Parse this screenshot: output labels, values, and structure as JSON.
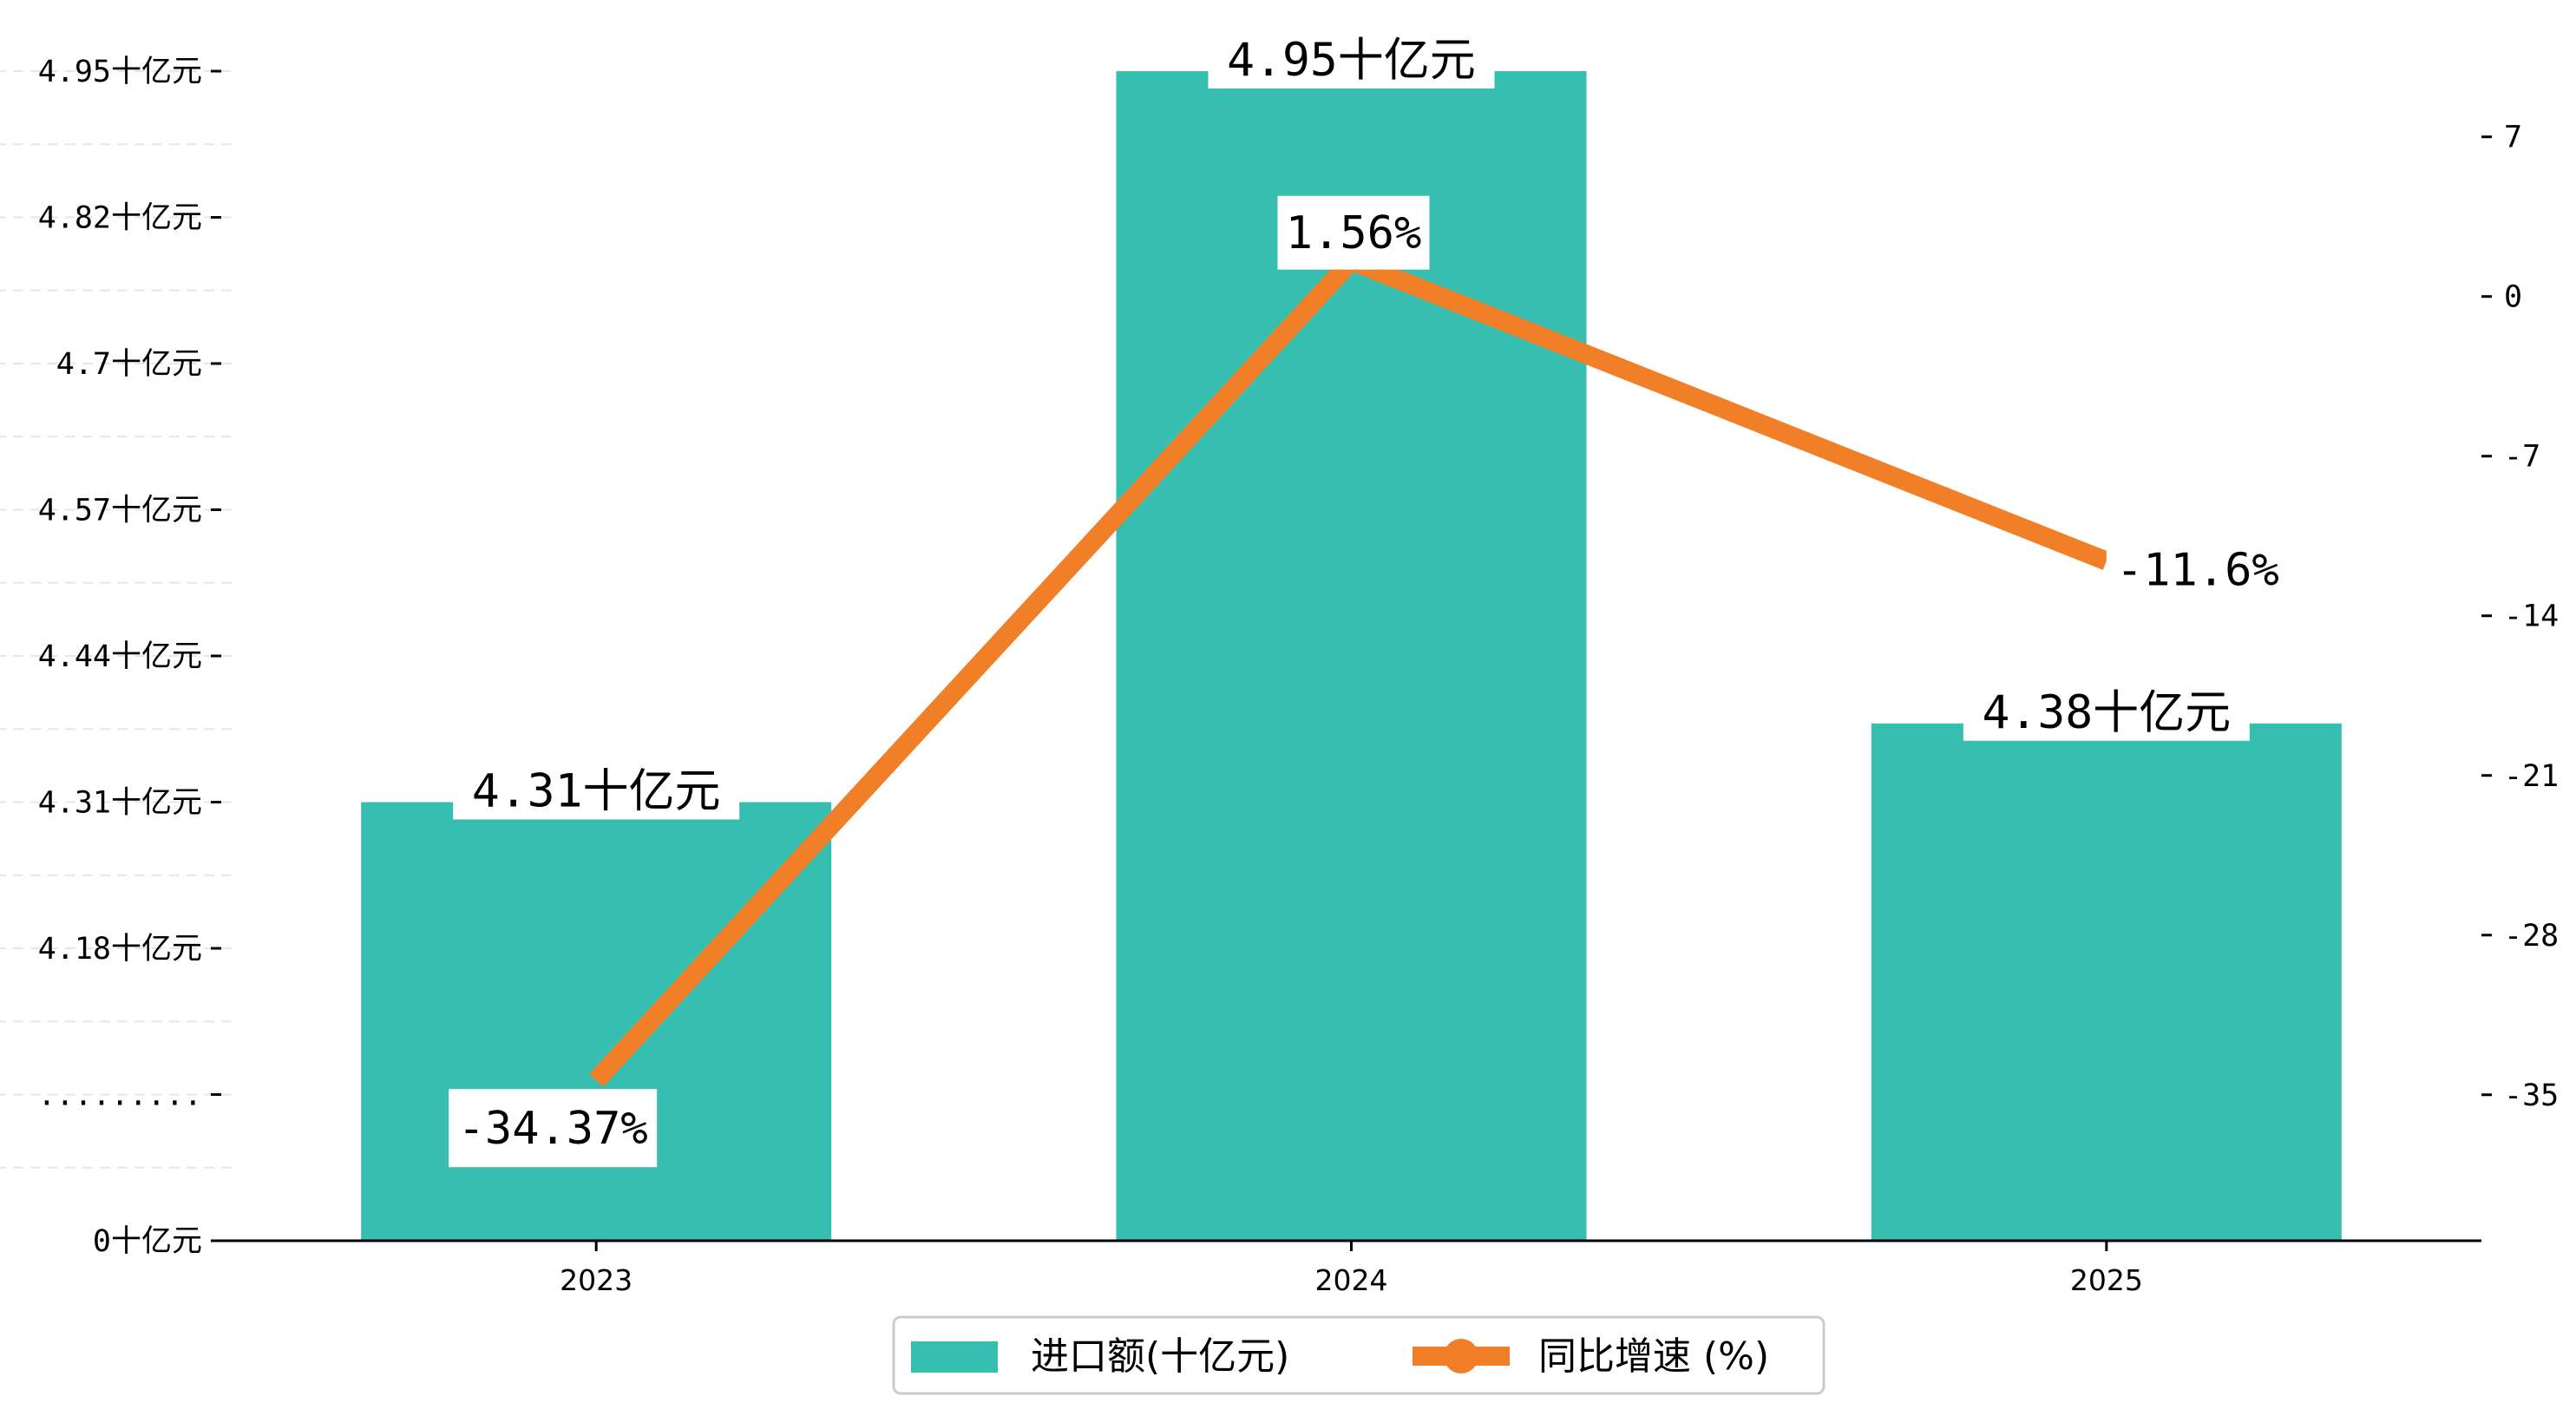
{
  "chart_data": {
    "type": "bar",
    "categories": [
      "2023",
      "2024",
      "2025"
    ],
    "series": [
      {
        "name": "进口额(十亿元)",
        "type": "bar",
        "axis": "left",
        "values": [
          4.31,
          4.95,
          4.38
        ],
        "labels": [
          "4.31十亿元",
          "4.95十亿元",
          "4.38十亿元"
        ],
        "color": "#1ab5a5"
      },
      {
        "name": "同比增速 (%)",
        "type": "line",
        "axis": "right",
        "values": [
          -34.37,
          1.56,
          -11.6
        ],
        "labels": [
          "-34.37%",
          "1.56%",
          "-11.6%"
        ],
        "color": "#f07f28"
      }
    ],
    "left_axis": {
      "ticks": [
        {
          "value": 0,
          "label": "0十亿元"
        },
        {
          "value": 4.05,
          "label": "........."
        },
        {
          "value": 4.18,
          "label": "4.18十亿元"
        },
        {
          "value": 4.31,
          "label": "4.31十亿元"
        },
        {
          "value": 4.44,
          "label": "4.44十亿元"
        },
        {
          "value": 4.57,
          "label": "4.57十亿元"
        },
        {
          "value": 4.7,
          "label": "4.7十亿元"
        },
        {
          "value": 4.82,
          "label": "4.82十亿元"
        },
        {
          "value": 4.95,
          "label": "4.95十亿元"
        }
      ],
      "broken": true
    },
    "right_axis": {
      "ticks": [
        7,
        0,
        -7,
        -14,
        -21,
        -28,
        -35
      ],
      "ylim": [
        -41.4,
        13.0
      ]
    },
    "legend": {
      "position": "bottom-center",
      "entries": [
        "进口额(十亿元)",
        "同比增速 (%)"
      ]
    },
    "grid": "horizontal-dashed"
  }
}
